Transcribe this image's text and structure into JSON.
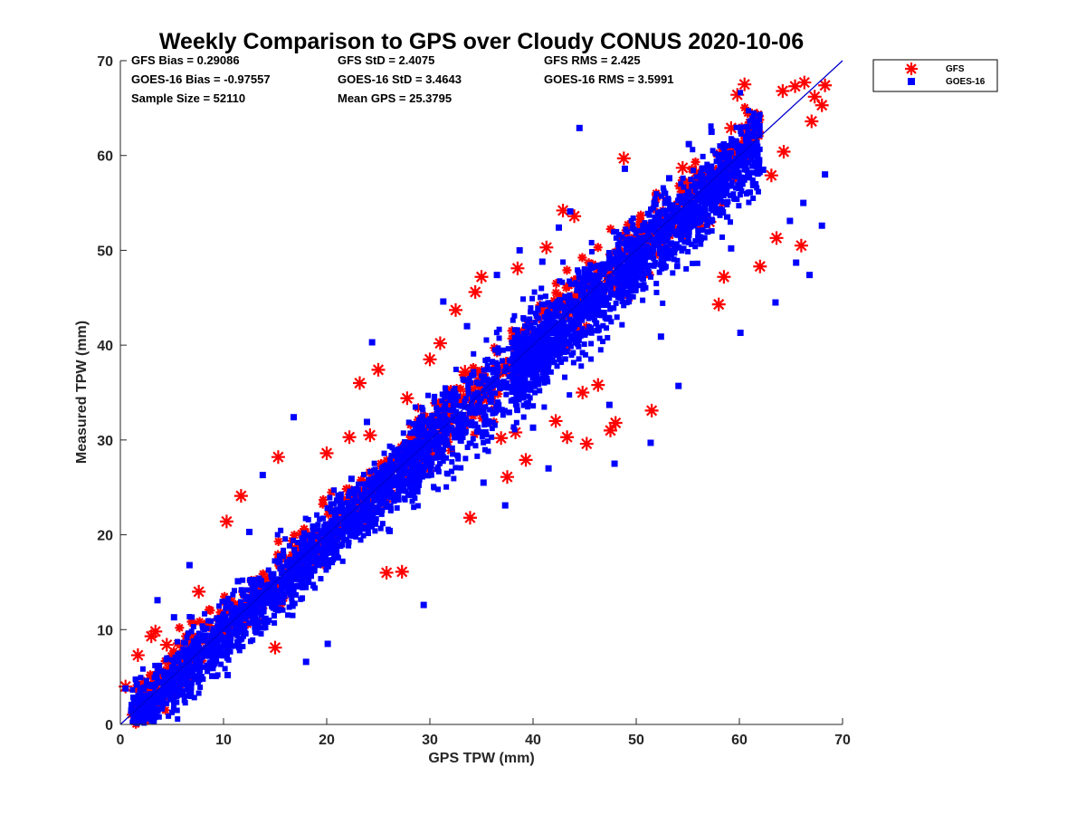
{
  "chart_data": {
    "type": "scatter",
    "title": "Weekly Comparison to GPS over Cloudy CONUS 2020-10-06",
    "xlabel": "GPS TPW (mm)",
    "ylabel": "Measured TPW (mm)",
    "xlim": [
      0,
      70
    ],
    "ylim": [
      0,
      70
    ],
    "xticks": [
      "0",
      "10",
      "20",
      "30",
      "40",
      "50",
      "60",
      "70"
    ],
    "yticks": [
      "0",
      "10",
      "20",
      "30",
      "40",
      "50",
      "60",
      "70"
    ],
    "grid": false,
    "legend_position": "outside top-right",
    "reference_line": {
      "type": "one-to-one",
      "from": [
        0,
        0
      ],
      "to": [
        70,
        70
      ],
      "color": "#0000cc"
    },
    "stats": [
      [
        "GFS Bias = 0.29086",
        "GFS StD = 2.4075",
        "GFS RMS = 2.425"
      ],
      [
        "GOES-16 Bias = -0.97557",
        "GOES-16 StD = 3.4643",
        "GOES-16 RMS = 3.5991"
      ],
      [
        "Sample Size = 52110",
        "Mean GPS = 25.3795"
      ]
    ],
    "series": [
      {
        "name": "GFS",
        "marker": "asterisk",
        "color": "#ff0000",
        "points": [
          [
            0.5,
            4.0
          ],
          [
            1.7,
            7.3
          ],
          [
            3.0,
            9.3
          ],
          [
            3.4,
            9.8
          ],
          [
            4.5,
            8.4
          ],
          [
            5.7,
            3.5
          ],
          [
            7.6,
            14.0
          ],
          [
            10.3,
            21.4
          ],
          [
            11.7,
            24.1
          ],
          [
            15.3,
            28.2
          ],
          [
            15.0,
            8.1
          ],
          [
            13.5,
            10.9
          ],
          [
            20.0,
            28.6
          ],
          [
            22.2,
            30.3
          ],
          [
            23.2,
            36.0
          ],
          [
            24.2,
            30.5
          ],
          [
            25.0,
            37.4
          ],
          [
            25.8,
            16.0
          ],
          [
            27.3,
            16.1
          ],
          [
            27.8,
            34.4
          ],
          [
            30.0,
            38.5
          ],
          [
            31.0,
            40.2
          ],
          [
            32.5,
            43.7
          ],
          [
            33.4,
            37.2
          ],
          [
            33.9,
            21.8
          ],
          [
            34.4,
            45.6
          ],
          [
            35.0,
            47.2
          ],
          [
            36.3,
            36.0
          ],
          [
            36.9,
            30.2
          ],
          [
            37.5,
            26.1
          ],
          [
            38.3,
            30.8
          ],
          [
            38.5,
            48.1
          ],
          [
            39.3,
            27.9
          ],
          [
            41.3,
            50.3
          ],
          [
            42.2,
            32.0
          ],
          [
            42.9,
            54.2
          ],
          [
            43.3,
            30.3
          ],
          [
            44.0,
            53.6
          ],
          [
            44.8,
            35.0
          ],
          [
            45.2,
            29.6
          ],
          [
            46.3,
            35.8
          ],
          [
            47.5,
            31.0
          ],
          [
            48.0,
            31.8
          ],
          [
            48.8,
            59.7
          ],
          [
            51.5,
            33.1
          ],
          [
            54.5,
            58.7
          ],
          [
            55.8,
            58.2
          ],
          [
            57.1,
            53.0
          ],
          [
            58.0,
            44.3
          ],
          [
            58.5,
            47.2
          ],
          [
            59.2,
            62.9
          ],
          [
            59.8,
            66.4
          ],
          [
            60.5,
            67.5
          ],
          [
            61.7,
            64.2
          ],
          [
            62.0,
            48.3
          ],
          [
            63.1,
            57.9
          ],
          [
            63.6,
            51.3
          ],
          [
            64.3,
            60.4
          ],
          [
            64.2,
            66.8
          ],
          [
            65.4,
            67.3
          ],
          [
            66.3,
            67.7
          ],
          [
            66.0,
            50.5
          ],
          [
            67.3,
            66.2
          ],
          [
            67.0,
            63.6
          ],
          [
            68.0,
            65.3
          ],
          [
            68.3,
            67.4
          ]
        ]
      },
      {
        "name": "GOES-16",
        "marker": "square",
        "color": "#0000ff",
        "points": [
          [
            0.5,
            3.8
          ],
          [
            1.6,
            4.2
          ],
          [
            2.2,
            2.5
          ],
          [
            3.6,
            13.1
          ],
          [
            5.2,
            11.3
          ],
          [
            6.7,
            16.8
          ],
          [
            7.5,
            4.8
          ],
          [
            10.4,
            5.2
          ],
          [
            11.4,
            15.1
          ],
          [
            12.5,
            20.3
          ],
          [
            13.8,
            26.3
          ],
          [
            16.8,
            32.4
          ],
          [
            18.0,
            6.6
          ],
          [
            20.1,
            8.5
          ],
          [
            21.0,
            23.6
          ],
          [
            22.4,
            25.9
          ],
          [
            23.9,
            31.9
          ],
          [
            24.4,
            40.3
          ],
          [
            26.1,
            20.4
          ],
          [
            28.3,
            27.6
          ],
          [
            29.4,
            12.6
          ],
          [
            30.9,
            31.8
          ],
          [
            31.3,
            44.6
          ],
          [
            32.3,
            35.1
          ],
          [
            33.6,
            42.0
          ],
          [
            35.2,
            25.5
          ],
          [
            36.5,
            47.4
          ],
          [
            37.3,
            23.1
          ],
          [
            38.7,
            50.0
          ],
          [
            40.0,
            31.3
          ],
          [
            40.9,
            48.8
          ],
          [
            41.5,
            27.0
          ],
          [
            42.5,
            52.4
          ],
          [
            43.6,
            54.1
          ],
          [
            44.5,
            62.9
          ],
          [
            45.2,
            43.8
          ],
          [
            46.2,
            45.9
          ],
          [
            47.4,
            33.7
          ],
          [
            47.9,
            27.5
          ],
          [
            48.9,
            58.6
          ],
          [
            50.3,
            51.3
          ],
          [
            51.4,
            29.7
          ],
          [
            52.4,
            40.9
          ],
          [
            53.2,
            57.6
          ],
          [
            54.1,
            35.7
          ],
          [
            55.1,
            61.2
          ],
          [
            56.2,
            55.5
          ],
          [
            57.3,
            62.5
          ],
          [
            58.4,
            54.0
          ],
          [
            59.2,
            50.2
          ],
          [
            60.1,
            41.3
          ],
          [
            61.3,
            63.9
          ],
          [
            62.3,
            58.5
          ],
          [
            63.5,
            44.5
          ],
          [
            64.9,
            53.1
          ],
          [
            65.5,
            48.7
          ],
          [
            66.2,
            55.0
          ],
          [
            66.8,
            47.4
          ],
          [
            68.0,
            52.6
          ],
          [
            68.3,
            58.0
          ]
        ]
      }
    ]
  }
}
